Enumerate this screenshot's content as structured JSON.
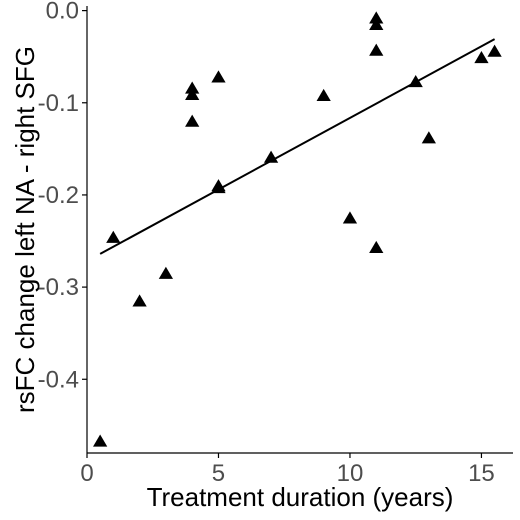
{
  "chart_data": {
    "type": "scatter",
    "title": "",
    "xlabel": "Treatment duration (years)",
    "ylabel": "rsFC change left NA - right SFG",
    "xlim": [
      0,
      16.2
    ],
    "ylim": [
      -0.48,
      0.005
    ],
    "x_ticks": [
      0,
      5,
      10,
      15
    ],
    "y_ticks": [
      0.0,
      -0.1,
      -0.2,
      -0.3,
      -0.4
    ],
    "x_tick_labels": [
      "0",
      "5",
      "10",
      "15"
    ],
    "y_tick_labels": [
      "0.0",
      "-0.1",
      "-0.2",
      "-0.3",
      "-0.4"
    ],
    "grid": false,
    "marker": "triangle",
    "marker_color": "#000000",
    "points": [
      {
        "x": 0.5,
        "y": -0.468
      },
      {
        "x": 1.0,
        "y": -0.247
      },
      {
        "x": 2.0,
        "y": -0.316
      },
      {
        "x": 3.0,
        "y": -0.286
      },
      {
        "x": 4.0,
        "y": -0.085
      },
      {
        "x": 4.0,
        "y": -0.092
      },
      {
        "x": 4.0,
        "y": -0.121
      },
      {
        "x": 5.0,
        "y": -0.073
      },
      {
        "x": 5.0,
        "y": -0.191
      },
      {
        "x": 5.0,
        "y": -0.193
      },
      {
        "x": 7.0,
        "y": -0.16
      },
      {
        "x": 9.0,
        "y": -0.093
      },
      {
        "x": 10.0,
        "y": -0.226
      },
      {
        "x": 11.0,
        "y": -0.009
      },
      {
        "x": 11.0,
        "y": -0.016
      },
      {
        "x": 11.0,
        "y": -0.044
      },
      {
        "x": 11.0,
        "y": -0.258
      },
      {
        "x": 12.5,
        "y": -0.078
      },
      {
        "x": 13.0,
        "y": -0.139
      },
      {
        "x": 15.0,
        "y": -0.052
      },
      {
        "x": 15.5,
        "y": -0.045
      }
    ],
    "regression_line": {
      "x": [
        0.5,
        15.5
      ],
      "y": [
        -0.264,
        -0.031
      ],
      "color": "#000000"
    }
  }
}
